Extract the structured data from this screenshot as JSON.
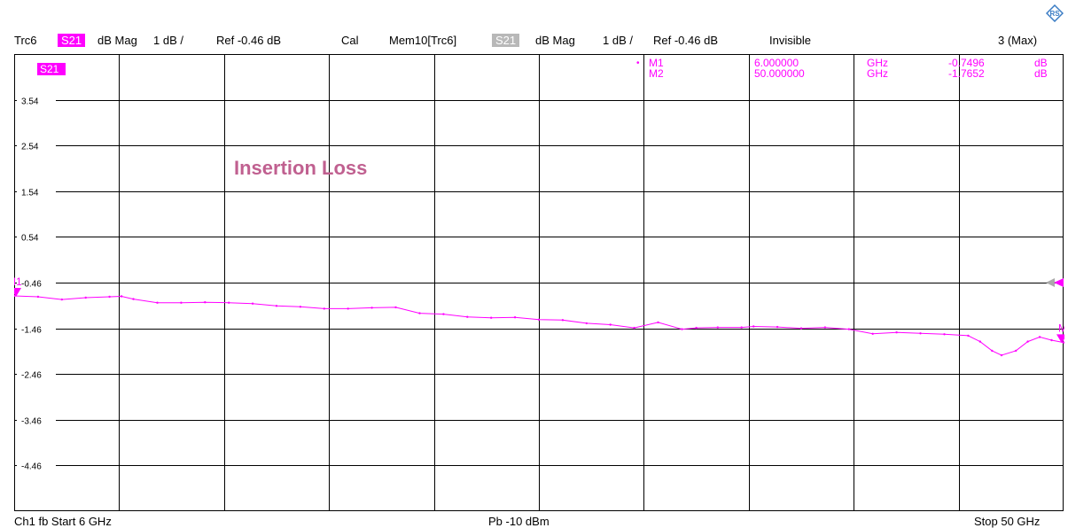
{
  "header": {
    "trace": "Trc6",
    "param": "S21",
    "format": "dB Mag",
    "scale": "1 dB /",
    "ref": "Ref -0.46 dB",
    "cal": "Cal",
    "mem_trace": "Mem10[Trc6]",
    "mem_param": "S21",
    "mem_format": "dB Mag",
    "mem_scale": "1 dB /",
    "mem_ref": "Ref -0.46 dB",
    "mem_state": "Invisible",
    "right": "3 (Max)"
  },
  "footer": {
    "channel": "Ch1  fb  Start  6 GHz",
    "power": "Pb  -10 dBm",
    "stop": "Stop  50 GHz"
  },
  "colors": {
    "trace": "#ff00ff",
    "label": "#c06090",
    "grid": "#000000"
  },
  "chart_data": {
    "type": "line",
    "title": "Insertion Loss",
    "trace_label": "S21",
    "x_unit": "GHz",
    "y_unit": "dB",
    "xlim": [
      6,
      50
    ],
    "ylim": [
      -5.46,
      4.54
    ],
    "x_divisions": 10,
    "y_divisions": 10,
    "grid": true,
    "ytick_values": [
      3.54,
      2.54,
      1.54,
      0.54,
      -0.46,
      -1.46,
      -2.46,
      -3.46,
      -4.46
    ],
    "ytick_labels": [
      "3.54",
      "2.54",
      "1.54",
      "0.54",
      "-0.46",
      "-1.46",
      "-2.46",
      "-3.46",
      "-4.46"
    ],
    "reference_label": "-0.46",
    "series": [
      {
        "x": [
          6,
          7,
          8,
          9,
          10,
          10.5,
          11,
          12,
          13,
          14,
          15,
          16,
          17,
          18,
          19,
          20,
          21,
          22,
          23,
          24,
          25,
          26,
          27,
          28,
          29,
          30,
          31,
          32,
          33,
          34,
          34.6,
          35.5,
          36.5,
          37,
          38,
          39,
          40,
          41,
          42,
          43,
          44,
          45,
          46,
          46.5,
          47,
          47.4,
          48,
          48.5,
          49,
          49.5,
          50
        ],
        "y": [
          -0.75,
          -0.77,
          -0.83,
          -0.79,
          -0.77,
          -0.76,
          -0.82,
          -0.9,
          -0.9,
          -0.89,
          -0.9,
          -0.92,
          -0.97,
          -0.99,
          -1.03,
          -1.03,
          -1.01,
          -1.0,
          -1.13,
          -1.15,
          -1.21,
          -1.23,
          -1.22,
          -1.27,
          -1.28,
          -1.35,
          -1.38,
          -1.45,
          -1.33,
          -1.48,
          -1.45,
          -1.44,
          -1.44,
          -1.42,
          -1.43,
          -1.46,
          -1.44,
          -1.48,
          -1.58,
          -1.55,
          -1.57,
          -1.59,
          -1.62,
          -1.75,
          -1.95,
          -2.05,
          -1.95,
          -1.75,
          -1.65,
          -1.72,
          -1.77
        ]
      }
    ],
    "markers": [
      {
        "name": "M1",
        "x": 6.0,
        "x_text": "6.000000",
        "x_unit": "GHz",
        "y": -0.7496,
        "y_text": "-0.7496",
        "y_unit": "dB"
      },
      {
        "name": "M2",
        "x": 50.0,
        "x_text": "50.000000",
        "x_unit": "GHz",
        "y": -1.7652,
        "y_text": "-1.7652",
        "y_unit": "dB"
      }
    ]
  }
}
